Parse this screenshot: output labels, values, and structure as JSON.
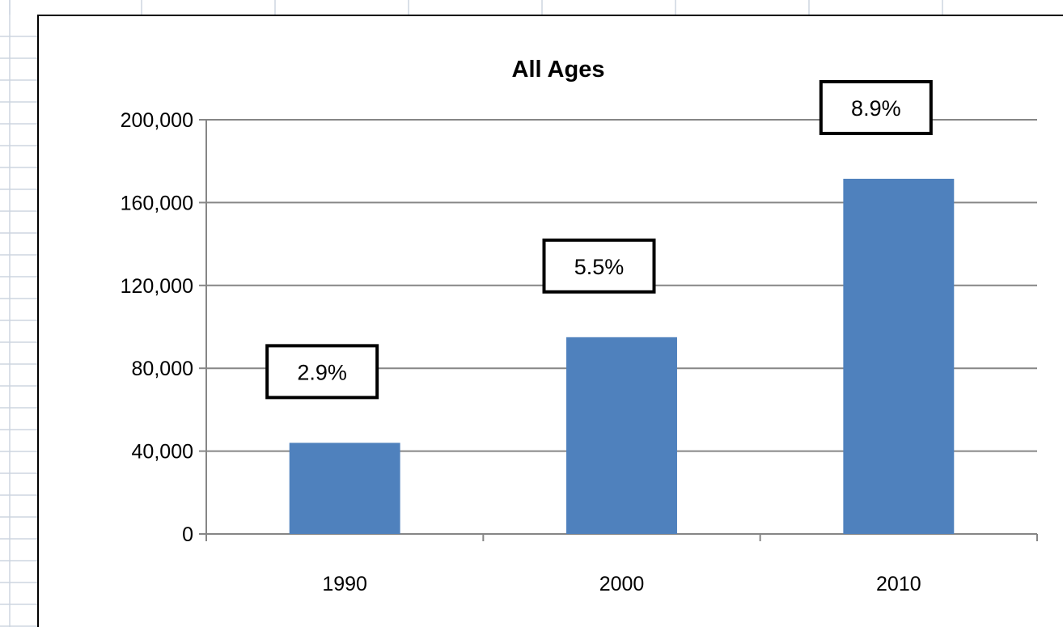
{
  "sheet": {
    "grid_color": "#cdd5e0",
    "background": "#ffffff"
  },
  "chart_data": {
    "type": "bar",
    "title": "All Ages",
    "categories": [
      "1990",
      "2000",
      "2010"
    ],
    "series": [
      {
        "values": [
          44000,
          95000,
          171500
        ],
        "color": "#4f81bd"
      }
    ],
    "data_labels": [
      "2.9%",
      "5.5%",
      "8.9%"
    ],
    "ylim": [
      0,
      200000
    ],
    "yticks": [
      0,
      40000,
      80000,
      120000,
      160000,
      200000
    ],
    "ytick_labels": [
      "0",
      "40,000",
      "80,000",
      "120,000",
      "160,000",
      "200,000"
    ],
    "xlabel": "",
    "ylabel": "",
    "grid": true,
    "legend": "none"
  }
}
